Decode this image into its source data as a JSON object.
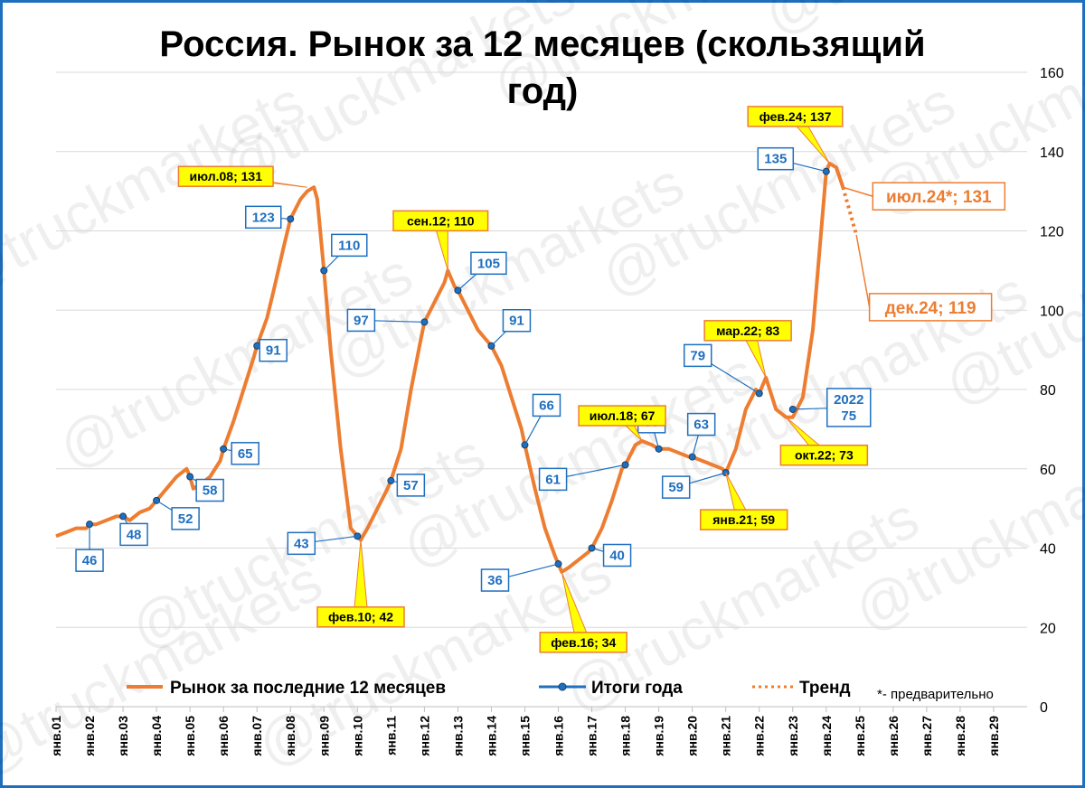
{
  "chart_data": {
    "type": "line",
    "title": "Россия. Рынок за 12 месяцев (скользящий год)",
    "title_lines": [
      "Россия. Рынок за 12 месяцев (скользящий",
      "год)"
    ],
    "y_axis": {
      "position": "right",
      "ylim": [
        0,
        160
      ],
      "ticks": [
        "0",
        "20",
        "40",
        "60",
        "80",
        "100",
        "120",
        "140",
        "160"
      ],
      "grid": true
    },
    "x_axis": {
      "ticks": [
        "янв.01",
        "янв.02",
        "янв.03",
        "янв.04",
        "янв.05",
        "янв.06",
        "янв.07",
        "янв.08",
        "янв.09",
        "янв.10",
        "янв.11",
        "янв.12",
        "янв.13",
        "янв.14",
        "янв.15",
        "янв.16",
        "янв.17",
        "янв.18",
        "янв.19",
        "янв.20",
        "янв.21",
        "янв.22",
        "янв.23",
        "янв.24",
        "янв.25",
        "янв.26",
        "янв.27",
        "янв.28",
        "янв.29"
      ],
      "xlim": [
        2001,
        2030
      ]
    },
    "series": [
      {
        "name": "Рынок за последние 12 месяцев",
        "color": "#ed7d31",
        "style": "solid",
        "x": [
          2001.0,
          2001.3,
          2001.6,
          2001.9,
          2002.0,
          2002.2,
          2002.5,
          2002.8,
          2003.0,
          2003.2,
          2003.5,
          2003.8,
          2004.0,
          2004.3,
          2004.6,
          2004.9,
          2005.0,
          2005.1,
          2005.3,
          2005.6,
          2005.9,
          2006.0,
          2006.3,
          2006.6,
          2006.9,
          2007.0,
          2007.3,
          2007.5,
          2007.8,
          2008.0,
          2008.3,
          2008.5,
          2008.7,
          2008.8,
          2009.0,
          2009.2,
          2009.5,
          2009.8,
          2010.0,
          2010.1,
          2010.3,
          2010.6,
          2010.9,
          2011.0,
          2011.3,
          2011.6,
          2011.9,
          2012.0,
          2012.3,
          2012.6,
          2012.7,
          2012.9,
          2013.0,
          2013.3,
          2013.6,
          2013.9,
          2014.0,
          2014.3,
          2014.6,
          2014.9,
          2015.0,
          2015.3,
          2015.6,
          2015.9,
          2016.0,
          2016.1,
          2016.3,
          2016.6,
          2016.9,
          2017.0,
          2017.3,
          2017.6,
          2017.9,
          2018.0,
          2018.3,
          2018.5,
          2018.8,
          2019.0,
          2019.3,
          2019.6,
          2019.9,
          2020.0,
          2020.3,
          2020.6,
          2020.9,
          2021.0,
          2021.3,
          2021.6,
          2021.9,
          2022.0,
          2022.2,
          2022.5,
          2022.8,
          2023.0,
          2023.3,
          2023.6,
          2023.9,
          2024.0,
          2024.1,
          2024.3,
          2024.5
        ],
        "y": [
          43,
          44,
          45,
          45,
          46,
          46,
          47,
          48,
          48,
          47,
          49,
          50,
          52,
          55,
          58,
          60,
          58,
          55,
          56,
          58,
          62,
          65,
          72,
          80,
          88,
          91,
          98,
          105,
          116,
          123,
          128,
          130,
          131,
          128,
          110,
          90,
          65,
          45,
          43,
          42,
          45,
          50,
          55,
          57,
          65,
          80,
          93,
          97,
          102,
          107,
          110,
          106,
          105,
          100,
          95,
          92,
          91,
          86,
          78,
          70,
          66,
          55,
          45,
          38,
          36,
          34,
          35,
          37,
          39,
          40,
          45,
          52,
          60,
          61,
          66,
          67,
          66,
          65,
          65,
          64,
          63,
          63,
          62,
          61,
          60,
          59,
          65,
          75,
          80,
          79,
          83,
          75,
          73,
          73,
          78,
          95,
          125,
          135,
          137,
          136,
          131
        ]
      },
      {
        "name": "Итоги года",
        "color": "#1f6fbf",
        "style": "markers",
        "x": [
          2002,
          2003,
          2004,
          2005,
          2006,
          2007,
          2008,
          2009,
          2010,
          2011,
          2012,
          2013,
          2014,
          2015,
          2016,
          2017,
          2018,
          2019,
          2020,
          2021,
          2022,
          2023,
          2024
        ],
        "y": [
          46,
          48,
          52,
          58,
          65,
          91,
          123,
          110,
          43,
          57,
          97,
          105,
          91,
          66,
          36,
          40,
          61,
          65,
          63,
          59,
          79,
          75,
          135
        ]
      },
      {
        "name": "Тренд",
        "color": "#ed7d31",
        "style": "dotted",
        "x": [
          2024.5,
          2024.9
        ],
        "y": [
          131,
          119
        ]
      }
    ],
    "annotations": {
      "blue": [
        {
          "x": 2002,
          "y": 46,
          "text": "46"
        },
        {
          "x": 2003,
          "y": 48,
          "text": "48"
        },
        {
          "x": 2004,
          "y": 52,
          "text": "52"
        },
        {
          "x": 2005,
          "y": 58,
          "text": "58"
        },
        {
          "x": 2006,
          "y": 65,
          "text": "65"
        },
        {
          "x": 2007,
          "y": 91,
          "text": "91"
        },
        {
          "x": 2008,
          "y": 123,
          "text": "123"
        },
        {
          "x": 2009,
          "y": 110,
          "text": "110"
        },
        {
          "x": 2010,
          "y": 43,
          "text": "43"
        },
        {
          "x": 2011,
          "y": 57,
          "text": "57"
        },
        {
          "x": 2012,
          "y": 97,
          "text": "97"
        },
        {
          "x": 2013,
          "y": 105,
          "text": "105"
        },
        {
          "x": 2014,
          "y": 91,
          "text": "91"
        },
        {
          "x": 2015,
          "y": 66,
          "text": "66"
        },
        {
          "x": 2016,
          "y": 36,
          "text": "36"
        },
        {
          "x": 2017,
          "y": 40,
          "text": "40"
        },
        {
          "x": 2018,
          "y": 61,
          "text": "61"
        },
        {
          "x": 2019,
          "y": 65,
          "text": "65"
        },
        {
          "x": 2020,
          "y": 63,
          "text": "63"
        },
        {
          "x": 2021,
          "y": 59,
          "text": "59"
        },
        {
          "x": 2022,
          "y": 79,
          "text": "79"
        },
        {
          "x": 2023,
          "y": 75,
          "text": "2022\n75"
        },
        {
          "x": 2024,
          "y": 135,
          "text": "135"
        }
      ],
      "yellow": [
        {
          "x": 2008.5,
          "y": 131,
          "text": "июл.08; 131"
        },
        {
          "x": 2010.1,
          "y": 42,
          "text": "фев.10; 42"
        },
        {
          "x": 2012.7,
          "y": 110,
          "text": "сен.12; 110"
        },
        {
          "x": 2016.1,
          "y": 34,
          "text": "фев.16; 34"
        },
        {
          "x": 2018.5,
          "y": 67,
          "text": "июл.18; 67"
        },
        {
          "x": 2021.0,
          "y": 59,
          "text": "янв.21; 59"
        },
        {
          "x": 2022.2,
          "y": 83,
          "text": "мар.22; 83"
        },
        {
          "x": 2022.8,
          "y": 73,
          "text": "окт.22; 73"
        },
        {
          "x": 2024.1,
          "y": 137,
          "text": "фев.24; 137"
        }
      ],
      "orange": [
        {
          "x": 2024.5,
          "y": 131,
          "text": "июл.24*; 131"
        },
        {
          "x": 2024.9,
          "y": 119,
          "text": "дек.24; 119"
        }
      ]
    },
    "legend": {
      "placement": "bottom",
      "items": [
        "Рынок за последние 12 месяцев",
        "Итоги года",
        "Тренд"
      ],
      "note": "*- предварительно"
    },
    "watermark": "@truckmarkets"
  }
}
